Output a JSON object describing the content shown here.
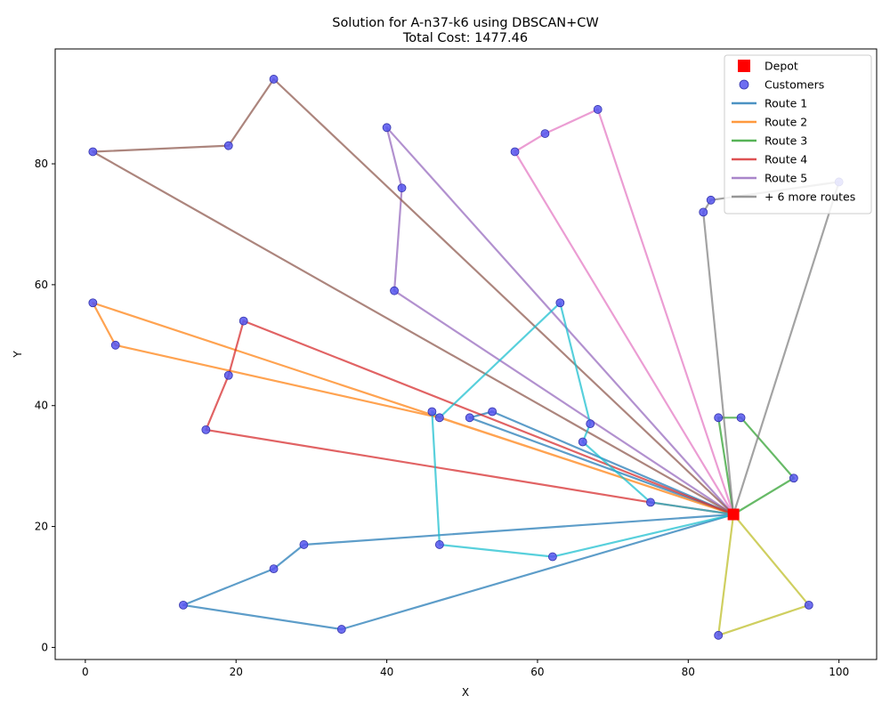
{
  "chart_data": {
    "type": "scatter",
    "title": "Solution for A-n37-k6 using DBSCAN+CW",
    "subtitle": "Total Cost: 1477.46",
    "xlabel": "X",
    "ylabel": "Y",
    "xlim": [
      -4,
      105
    ],
    "ylim": [
      -2,
      99
    ],
    "xticks": [
      0,
      20,
      40,
      60,
      80,
      100
    ],
    "yticks": [
      0,
      20,
      40,
      60,
      80
    ],
    "grid": false,
    "legend_position": "top-right",
    "depot": {
      "x": 86,
      "y": 22,
      "color": "#ff0000"
    },
    "customers": [
      {
        "x": 25,
        "y": 94
      },
      {
        "x": 1,
        "y": 82
      },
      {
        "x": 19,
        "y": 83
      },
      {
        "x": 40,
        "y": 86
      },
      {
        "x": 42,
        "y": 76
      },
      {
        "x": 41,
        "y": 59
      },
      {
        "x": 61,
        "y": 85
      },
      {
        "x": 68,
        "y": 89
      },
      {
        "x": 57,
        "y": 82
      },
      {
        "x": 82,
        "y": 72
      },
      {
        "x": 83,
        "y": 74
      },
      {
        "x": 100,
        "y": 77
      },
      {
        "x": 1,
        "y": 57
      },
      {
        "x": 4,
        "y": 50
      },
      {
        "x": 21,
        "y": 54
      },
      {
        "x": 19,
        "y": 45
      },
      {
        "x": 16,
        "y": 36
      },
      {
        "x": 63,
        "y": 57
      },
      {
        "x": 46,
        "y": 39
      },
      {
        "x": 47,
        "y": 38
      },
      {
        "x": 51,
        "y": 38
      },
      {
        "x": 54,
        "y": 39
      },
      {
        "x": 67,
        "y": 37
      },
      {
        "x": 66,
        "y": 34
      },
      {
        "x": 75,
        "y": 24
      },
      {
        "x": 84,
        "y": 38
      },
      {
        "x": 87,
        "y": 38
      },
      {
        "x": 94,
        "y": 28
      },
      {
        "x": 47,
        "y": 17
      },
      {
        "x": 62,
        "y": 15
      },
      {
        "x": 29,
        "y": 17
      },
      {
        "x": 25,
        "y": 13
      },
      {
        "x": 13,
        "y": 7
      },
      {
        "x": 34,
        "y": 3
      },
      {
        "x": 96,
        "y": 7
      },
      {
        "x": 84,
        "y": 2
      }
    ],
    "customer_color": "#5555ee",
    "routes": [
      {
        "name": "Route 1",
        "color": "#1f77b4",
        "points": [
          [
            86,
            22
          ],
          [
            29,
            17
          ],
          [
            25,
            13
          ],
          [
            13,
            7
          ],
          [
            34,
            3
          ],
          [
            86,
            22
          ]
        ]
      },
      {
        "name": "Route 1",
        "color": "#1f77b4",
        "points": [
          [
            86,
            22
          ],
          [
            54,
            39
          ],
          [
            51,
            38
          ],
          [
            86,
            22
          ]
        ]
      },
      {
        "name": "Route 2",
        "color": "#ff7f0e",
        "points": [
          [
            86,
            22
          ],
          [
            1,
            57
          ],
          [
            4,
            50
          ],
          [
            47,
            38
          ],
          [
            86,
            22
          ]
        ]
      },
      {
        "name": "Route 3",
        "color": "#2ca02c",
        "points": [
          [
            86,
            22
          ],
          [
            84,
            38
          ],
          [
            87,
            38
          ],
          [
            94,
            28
          ],
          [
            86,
            22
          ]
        ]
      },
      {
        "name": "Route 4",
        "color": "#d62728",
        "points": [
          [
            86,
            22
          ],
          [
            21,
            54
          ],
          [
            19,
            45
          ],
          [
            16,
            36
          ],
          [
            75,
            24
          ],
          [
            86,
            22
          ]
        ]
      },
      {
        "name": "Route 5",
        "color": "#9467bd",
        "points": [
          [
            86,
            22
          ],
          [
            41,
            59
          ],
          [
            42,
            76
          ],
          [
            40,
            86
          ],
          [
            86,
            22
          ]
        ]
      },
      {
        "name": "",
        "color": "#8c564b",
        "points": [
          [
            86,
            22
          ],
          [
            25,
            94
          ],
          [
            19,
            83
          ],
          [
            1,
            82
          ],
          [
            86,
            22
          ]
        ]
      },
      {
        "name": "",
        "color": "#e377c2",
        "points": [
          [
            86,
            22
          ],
          [
            57,
            82
          ],
          [
            61,
            85
          ],
          [
            68,
            89
          ],
          [
            86,
            22
          ]
        ]
      },
      {
        "name": "",
        "color": "#7f7f7f",
        "points": [
          [
            86,
            22
          ],
          [
            82,
            72
          ],
          [
            83,
            74
          ],
          [
            100,
            77
          ],
          [
            86,
            22
          ]
        ]
      },
      {
        "name": "",
        "color": "#bcbd22",
        "points": [
          [
            86,
            22
          ],
          [
            96,
            7
          ],
          [
            84,
            2
          ],
          [
            86,
            22
          ]
        ]
      },
      {
        "name": "",
        "color": "#17becf",
        "points": [
          [
            86,
            22
          ],
          [
            75,
            24
          ],
          [
            66,
            34
          ],
          [
            67,
            37
          ],
          [
            63,
            57
          ],
          [
            47,
            38
          ],
          [
            46,
            39
          ],
          [
            47,
            17
          ],
          [
            62,
            15
          ],
          [
            86,
            22
          ]
        ]
      }
    ],
    "legend": [
      {
        "label": "Depot",
        "kind": "square",
        "color": "#ff0000"
      },
      {
        "label": "Customers",
        "kind": "circle",
        "color": "#5555ee"
      },
      {
        "label": "Route 1",
        "kind": "line",
        "color": "#1f77b4"
      },
      {
        "label": "Route 2",
        "kind": "line",
        "color": "#ff7f0e"
      },
      {
        "label": "Route 3",
        "kind": "line",
        "color": "#2ca02c"
      },
      {
        "label": "Route 4",
        "kind": "line",
        "color": "#d62728"
      },
      {
        "label": "Route 5",
        "kind": "line",
        "color": "#9467bd"
      },
      {
        "label": "+ 6 more routes",
        "kind": "line",
        "color": "#7f7f7f"
      }
    ]
  }
}
